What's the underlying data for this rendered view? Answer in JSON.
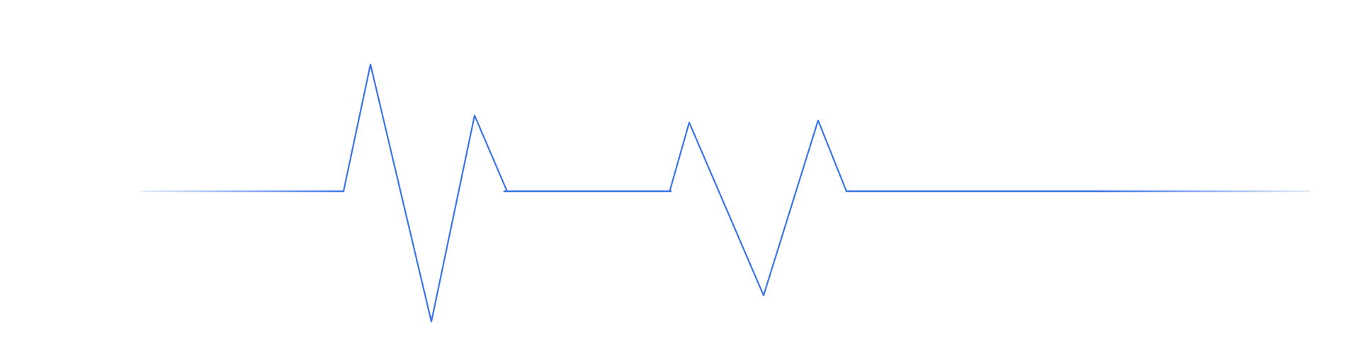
{
  "waveform": {
    "name": "heartbeat-pulse-line",
    "stroke_color": "#3b73e8",
    "fade_color": "#e4ecfb"
  }
}
